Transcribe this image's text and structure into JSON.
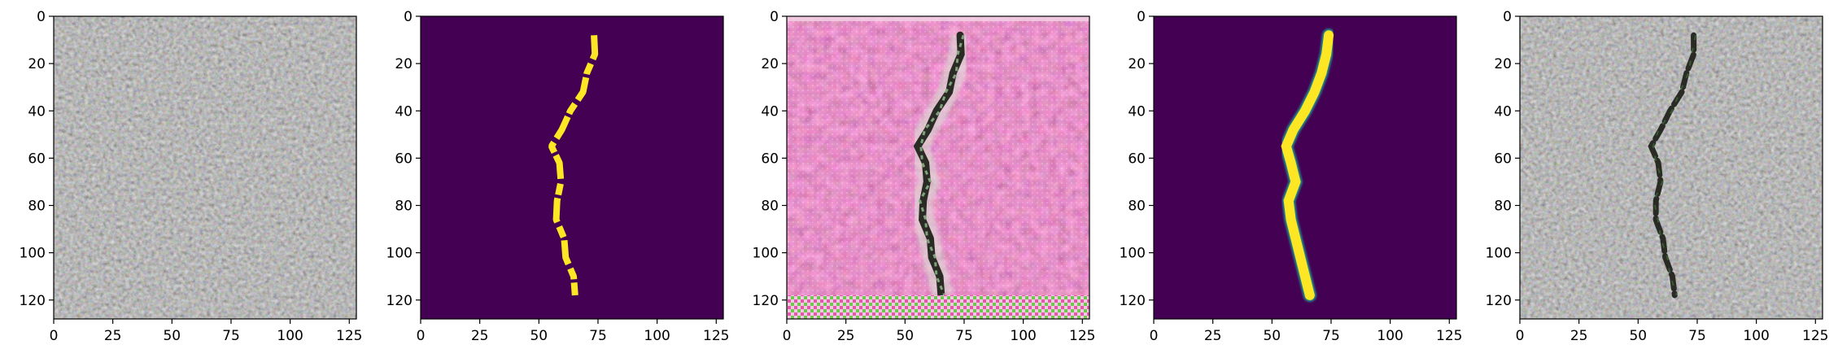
{
  "axis": {
    "x_ticks": [
      "0",
      "25",
      "50",
      "75",
      "100",
      "125"
    ],
    "x_tick_values": [
      0,
      25,
      50,
      75,
      100,
      125
    ],
    "y_ticks": [
      "0",
      "20",
      "40",
      "60",
      "80",
      "100",
      "120"
    ],
    "y_tick_values": [
      0,
      20,
      40,
      60,
      80,
      100,
      120
    ],
    "extent": [
      0,
      128
    ]
  },
  "panels": [
    {
      "name": "asphalt-texture-image"
    },
    {
      "name": "crack-binary-mask"
    },
    {
      "name": "crack-generated-magenta-texture"
    },
    {
      "name": "crack-smoothed-mask"
    },
    {
      "name": "asphalt-with-crack-image"
    }
  ],
  "colors": {
    "viridis_dark": "#440154",
    "viridis_yellow": "#fde725",
    "asphalt_base": "#8a8a84",
    "magenta_base": "#cf4e8e",
    "crack_dark": "#2b2b26"
  },
  "crack_path": [
    [
      74,
      8
    ],
    [
      73,
      16
    ],
    [
      71,
      24
    ],
    [
      68,
      32
    ],
    [
      64,
      40
    ],
    [
      59,
      48
    ],
    [
      56,
      55
    ],
    [
      58,
      62
    ],
    [
      60,
      70
    ],
    [
      57,
      78
    ],
    [
      58,
      86
    ],
    [
      60,
      94
    ],
    [
      62,
      102
    ],
    [
      64,
      110
    ],
    [
      66,
      118
    ]
  ]
}
